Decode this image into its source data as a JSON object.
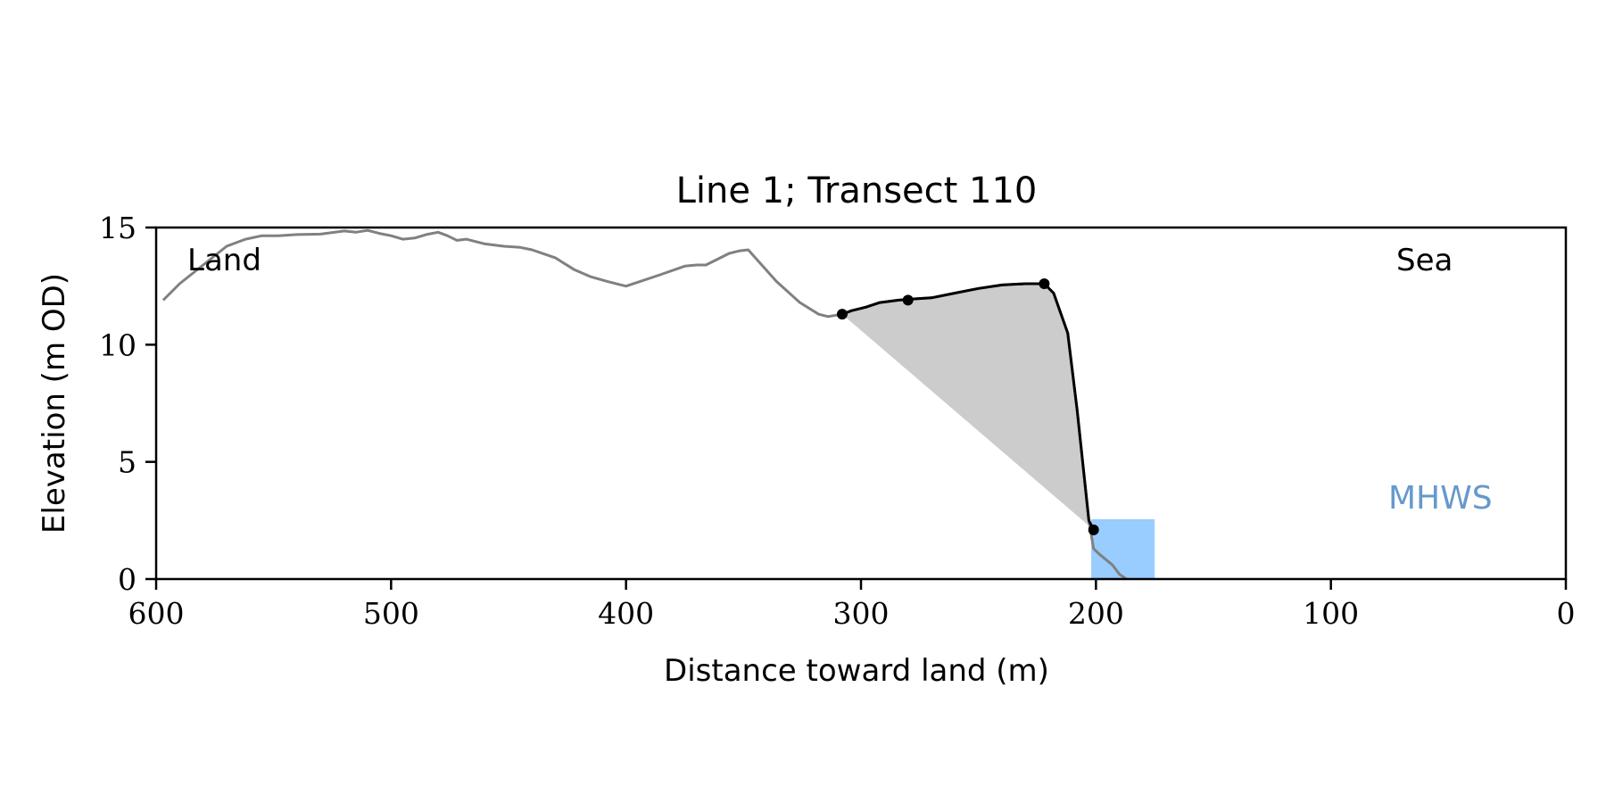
{
  "chart_data": {
    "type": "line",
    "title": "Line 1; Transect 110",
    "xlabel": "Distance toward land (m)",
    "ylabel": "Elevation (m OD)",
    "xlim": [
      600,
      0
    ],
    "ylim": [
      0,
      15
    ],
    "x_ticks": [
      600,
      500,
      400,
      300,
      200,
      100,
      0
    ],
    "y_ticks": [
      0,
      5,
      10,
      15
    ],
    "grid": false,
    "annotations": {
      "land": "Land",
      "sea": "Sea",
      "mhws": "MHWS"
    },
    "colors": {
      "profile": "#808080",
      "cliff": "#000000",
      "fill": "#cccccc",
      "mhws_box": "#99ccff",
      "mhws_text": "#6699cc"
    },
    "profile": {
      "x": [
        597,
        590,
        580,
        570,
        562,
        555,
        548,
        540,
        530,
        520,
        515,
        510,
        505,
        500,
        495,
        490,
        485,
        480,
        476,
        472,
        468,
        460,
        452,
        445,
        440,
        430,
        422,
        415,
        408,
        402,
        400,
        394,
        385,
        375,
        370,
        366,
        360,
        356,
        352,
        348,
        344,
        336,
        326,
        318,
        314,
        308,
        304,
        298,
        292,
        284,
        278,
        270,
        260,
        250,
        240,
        230,
        222,
        218,
        212,
        208,
        203,
        201,
        199,
        196,
        193,
        190,
        187
      ],
      "y": [
        11.9,
        12.6,
        13.4,
        14.2,
        14.5,
        14.65,
        14.65,
        14.7,
        14.72,
        14.85,
        14.8,
        14.88,
        14.75,
        14.65,
        14.5,
        14.55,
        14.7,
        14.8,
        14.65,
        14.45,
        14.5,
        14.3,
        14.2,
        14.15,
        14.05,
        13.7,
        13.2,
        12.9,
        12.7,
        12.55,
        12.5,
        12.7,
        13.0,
        13.35,
        13.4,
        13.4,
        13.7,
        13.9,
        14.0,
        14.05,
        13.6,
        12.7,
        11.8,
        11.3,
        11.2,
        11.3,
        11.45,
        11.6,
        11.8,
        11.9,
        11.95,
        12.0,
        12.2,
        12.4,
        12.55,
        12.6,
        12.6,
        12.2,
        10.5,
        7.2,
        2.5,
        1.3,
        1.1,
        0.85,
        0.6,
        0.2,
        0.0
      ]
    },
    "cliff_line": {
      "x": [
        308,
        304,
        298,
        292,
        284,
        278,
        270,
        260,
        250,
        240,
        230,
        222,
        218,
        212,
        208,
        203,
        201
      ],
      "y": [
        11.3,
        11.45,
        11.6,
        11.8,
        11.9,
        11.95,
        12.0,
        12.2,
        12.4,
        12.55,
        12.6,
        12.6,
        12.2,
        10.5,
        7.2,
        2.5,
        2.1
      ]
    },
    "cliff_points": {
      "x": [
        308,
        280,
        222,
        201
      ],
      "y": [
        11.3,
        11.9,
        12.6,
        2.1
      ]
    },
    "mhws": {
      "x_start": 202,
      "x_end": 175,
      "elevation": 2.55
    }
  }
}
